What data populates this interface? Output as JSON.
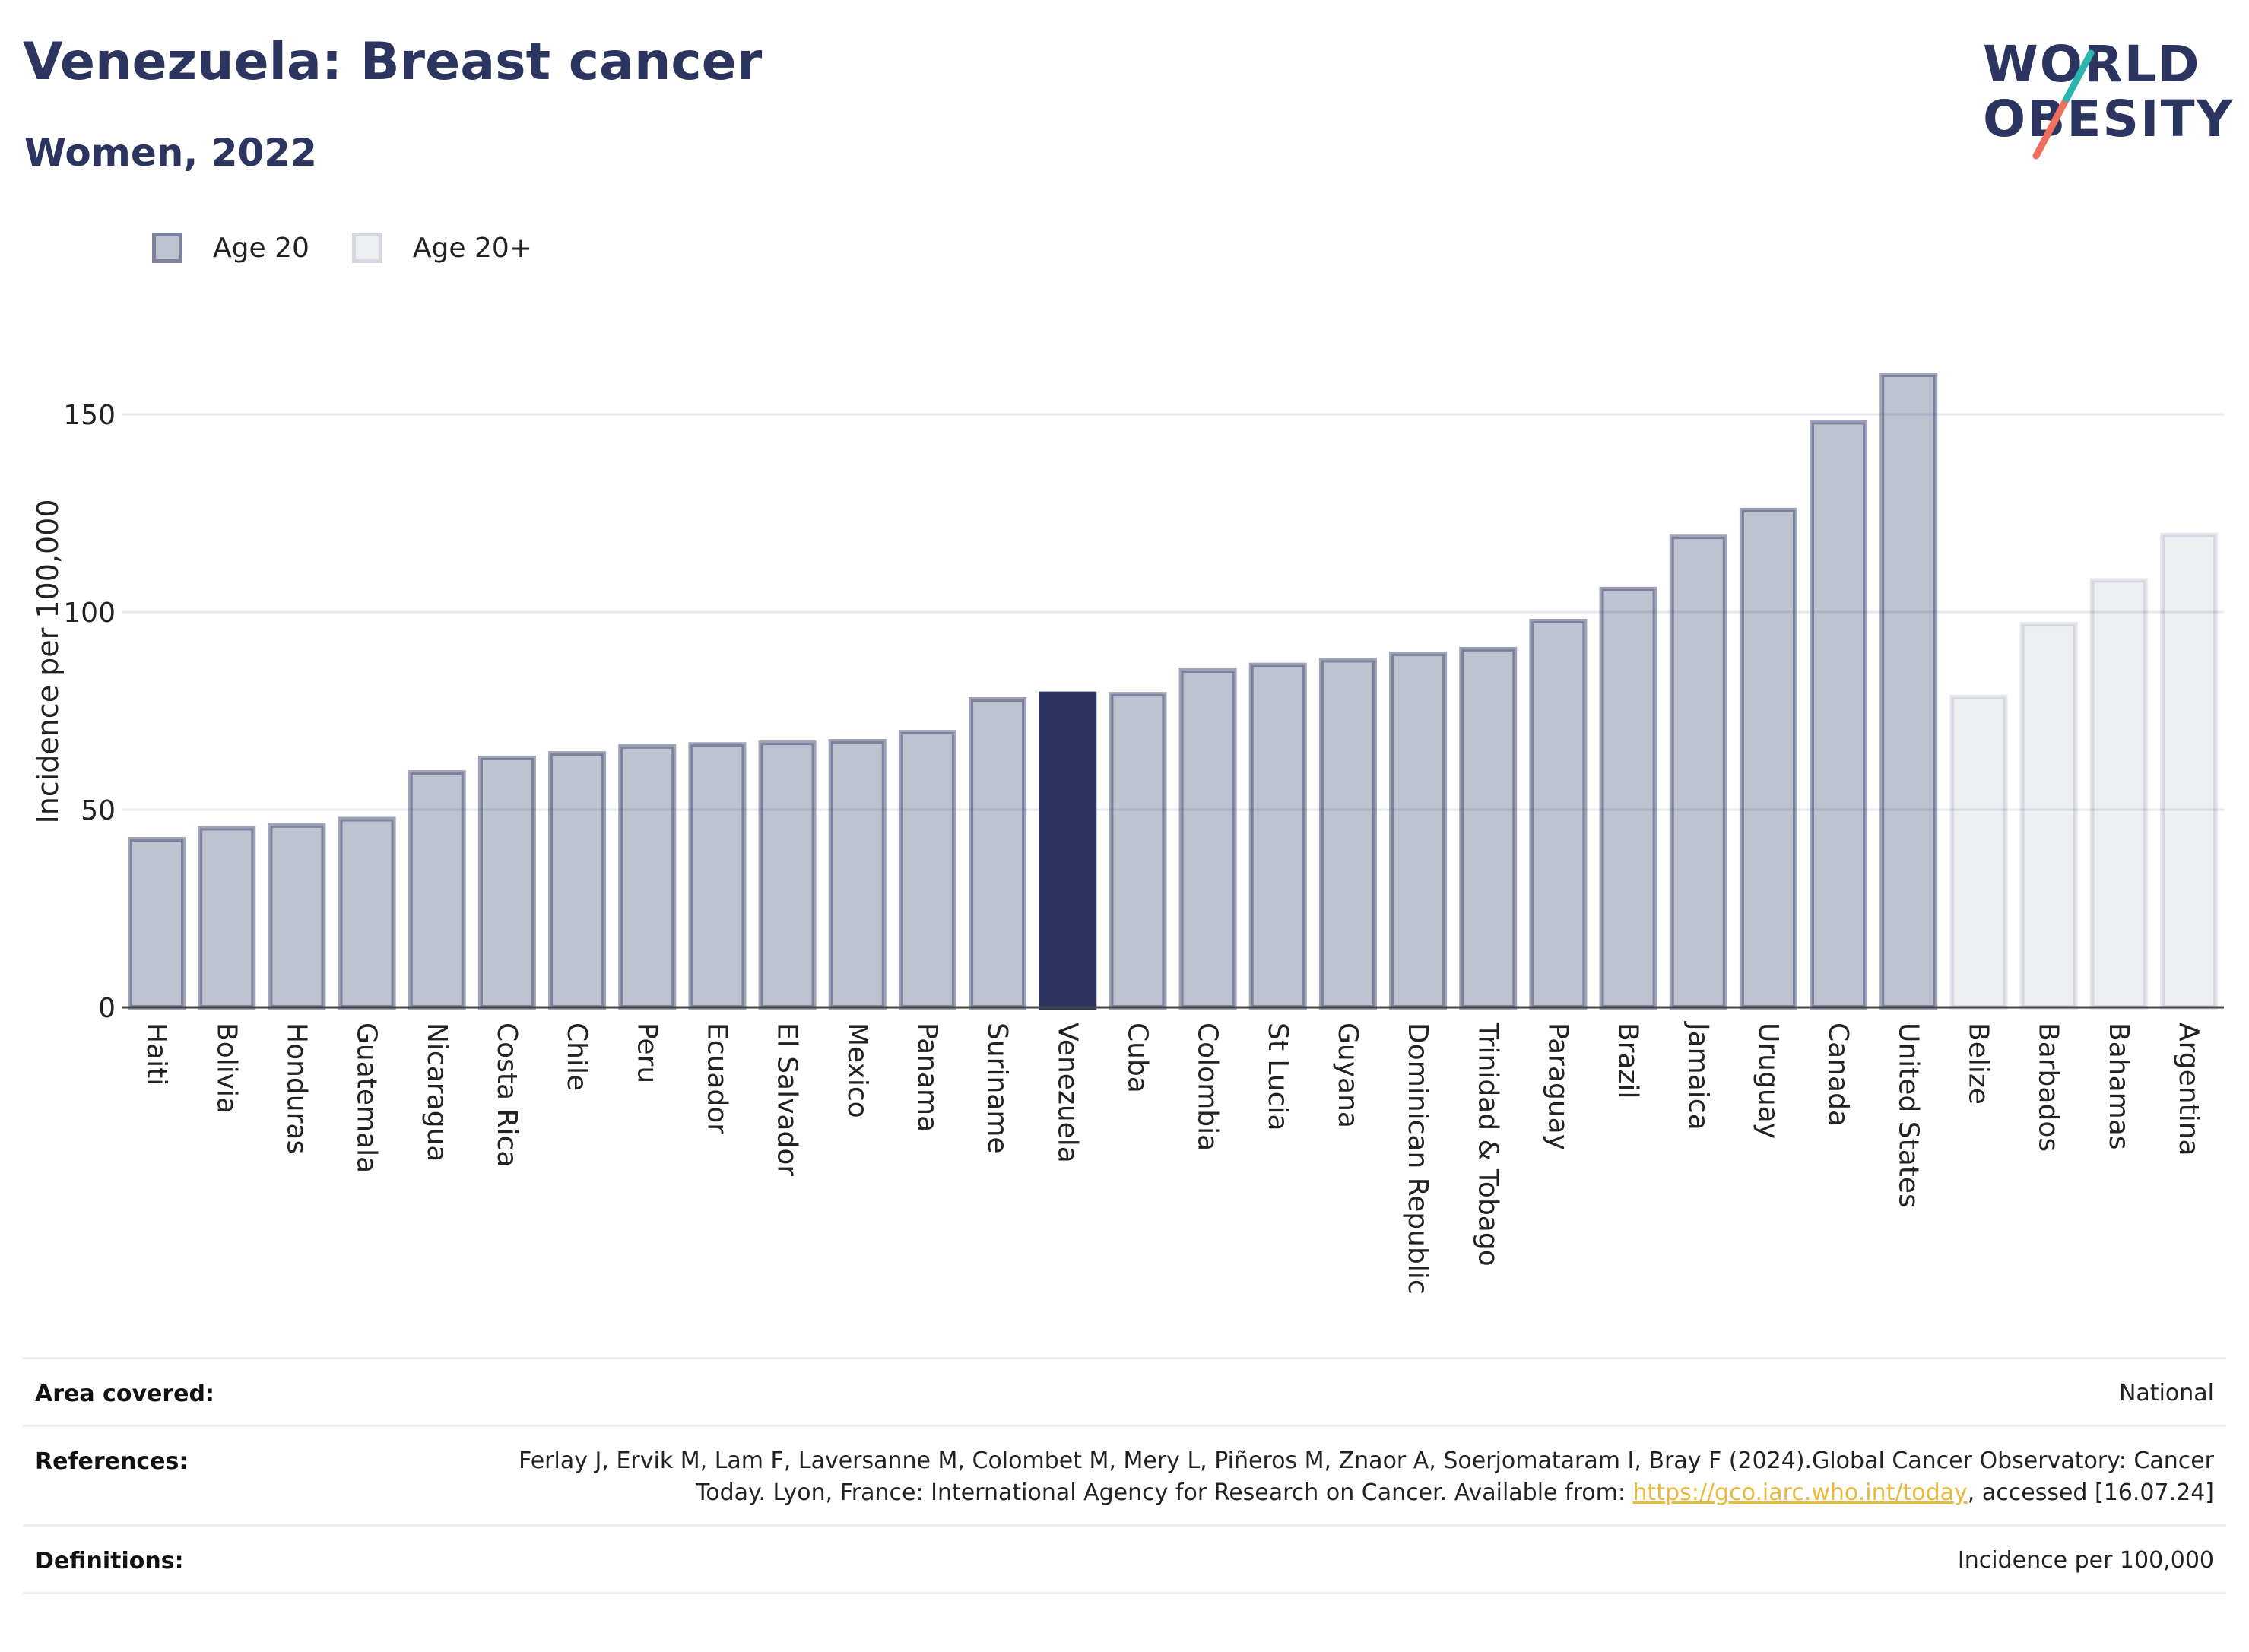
{
  "header": {
    "title": "Venezuela: Breast cancer",
    "subtitle": "Women, 2022"
  },
  "logo": {
    "line1": "WORLD",
    "line2": "OBESITY"
  },
  "colors": {
    "brand_navy": "#2b3560",
    "logo_teal": "#2bb5b1",
    "logo_coral": "#ef6f5c",
    "link": "#e8b93a"
  },
  "legend": {
    "position": "top-left",
    "items": [
      {
        "label": "Age 20",
        "swatch": "age20"
      },
      {
        "label": "Age 20+",
        "swatch": "age20plus"
      }
    ]
  },
  "chart_data": {
    "type": "bar",
    "ylabel": "Incidence per 100,000",
    "xlabel": "",
    "ylim": [
      0,
      175
    ],
    "yticks": [
      0,
      50,
      100,
      150
    ],
    "grid": true,
    "highlight": "Venezuela",
    "categories": [
      "Haiti",
      "Bolivia",
      "Honduras",
      "Guatemala",
      "Nicaragua",
      "Costa Rica",
      "Chile",
      "Peru",
      "Ecuador",
      "El Salvador",
      "Mexico",
      "Panama",
      "Suriname",
      "Venezuela",
      "Cuba",
      "Colombia",
      "St Lucia",
      "Guyana",
      "Dominican Republic",
      "Trinidad & Tobago",
      "Paraguay",
      "Brazil",
      "Jamaica",
      "Uruguay",
      "Canada",
      "United States",
      "Belize",
      "Barbados",
      "Bahamas",
      "Argentina"
    ],
    "values": [
      42.5,
      45.3,
      46.0,
      47.6,
      59.4,
      63.1,
      64.2,
      66.0,
      66.5,
      66.9,
      67.3,
      69.6,
      77.9,
      79.3,
      79.2,
      85.2,
      86.6,
      87.8,
      89.4,
      90.6,
      97.7,
      105.8,
      119.0,
      125.8,
      148.0,
      160.0,
      78.5,
      96.9,
      108.0,
      119.5
    ],
    "age_group": [
      "Age 20",
      "Age 20",
      "Age 20",
      "Age 20",
      "Age 20",
      "Age 20",
      "Age 20",
      "Age 20",
      "Age 20",
      "Age 20",
      "Age 20",
      "Age 20",
      "Age 20",
      "Age 20",
      "Age 20",
      "Age 20",
      "Age 20",
      "Age 20",
      "Age 20",
      "Age 20",
      "Age 20",
      "Age 20",
      "Age 20",
      "Age 20",
      "Age 20",
      "Age 20",
      "Age 20+",
      "Age 20+",
      "Age 20+",
      "Age 20+"
    ]
  },
  "meta": {
    "area_label": "Area covered:",
    "area_value": "National",
    "references_label": "References:",
    "references_text": "Ferlay J, Ervik M, Lam F, Laversanne M, Colombet M, Mery L, Piñeros M, Znaor A, Soerjomataram I, Bray F (2024).Global Cancer Observatory: Cancer Today. Lyon, France: International Agency for Research on Cancer. Available from: ",
    "references_link": "https://gco.iarc.who.int/today",
    "references_tail": ", accessed [16.07.24]",
    "definitions_label": "Definitions:",
    "definitions_value": "Incidence per 100,000"
  }
}
